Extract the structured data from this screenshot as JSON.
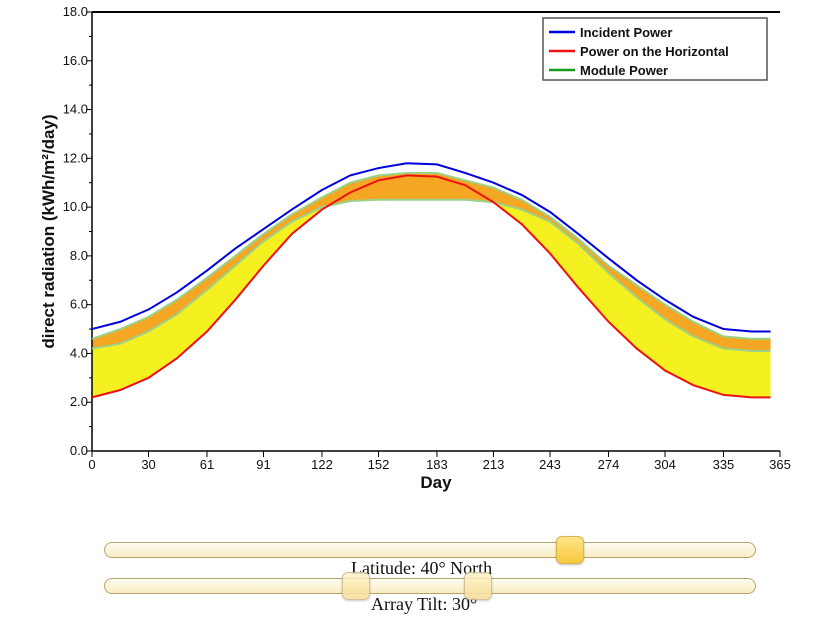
{
  "chart_data": {
    "type": "line",
    "title": "",
    "xlabel": "Day",
    "ylabel": "direct radiation (kWh/m²/day)",
    "xlim": [
      0,
      365
    ],
    "ylim": [
      0,
      18
    ],
    "x_ticks": [
      0,
      30,
      61,
      91,
      122,
      152,
      183,
      213,
      243,
      274,
      304,
      335,
      365
    ],
    "y_ticks": [
      "0.0",
      "2.0",
      "4.0",
      "6.0",
      "8.0",
      "10.0",
      "12.0",
      "14.0",
      "16.0",
      "18.0"
    ],
    "legend_position": "top-right",
    "x": [
      0,
      15,
      30,
      45,
      61,
      76,
      91,
      106,
      122,
      137,
      152,
      167,
      183,
      198,
      213,
      228,
      243,
      258,
      274,
      289,
      304,
      319,
      335,
      350,
      360
    ],
    "series": [
      {
        "name": "Incident Power",
        "color": "#0000dd",
        "values": [
          5.0,
          5.3,
          5.8,
          6.5,
          7.4,
          8.3,
          9.1,
          9.9,
          10.7,
          11.3,
          11.6,
          11.8,
          11.75,
          11.4,
          11.0,
          10.5,
          9.8,
          8.9,
          7.9,
          7.0,
          6.2,
          5.5,
          5.0,
          4.9,
          4.9
        ]
      },
      {
        "name": "Power on the Horizontal",
        "color": "#ee1111",
        "values": [
          2.2,
          2.5,
          3.0,
          3.8,
          4.9,
          6.2,
          7.6,
          8.9,
          9.9,
          10.6,
          11.1,
          11.3,
          11.25,
          10.9,
          10.2,
          9.3,
          8.1,
          6.7,
          5.3,
          4.2,
          3.3,
          2.7,
          2.3,
          2.2,
          2.2
        ]
      },
      {
        "name": "Module Power",
        "color": "#1a9a1a",
        "upper": [
          4.6,
          5.0,
          5.5,
          6.2,
          7.1,
          8.0,
          8.9,
          9.7,
          10.4,
          11.0,
          11.3,
          11.4,
          11.4,
          11.1,
          10.8,
          10.3,
          9.6,
          8.7,
          7.6,
          6.8,
          6.0,
          5.3,
          4.7,
          4.6,
          4.6
        ],
        "lower": [
          4.2,
          4.4,
          4.9,
          5.6,
          6.6,
          7.6,
          8.6,
          9.4,
          10.0,
          10.25,
          10.3,
          10.3,
          10.3,
          10.3,
          10.2,
          9.9,
          9.4,
          8.5,
          7.3,
          6.3,
          5.4,
          4.7,
          4.2,
          4.1,
          4.1
        ]
      }
    ],
    "fill_yellow_between": [
      "Module Power upper",
      "Power on the Horizontal"
    ],
    "fill_orange_between": [
      "Module Power upper",
      "Module Power lower"
    ],
    "colors": {
      "yellow_fill": "#f5f020",
      "orange_fill": "#f5a623",
      "module_light": "#9ad28a"
    }
  },
  "controls": {
    "latitude": {
      "label": "Latitude: 40° North",
      "value": 40,
      "min": -90,
      "max": 90
    },
    "tilt": {
      "label": "Array Tilt: 30°",
      "value": 30,
      "ghost_value": 0,
      "min": 0,
      "max": 90
    }
  }
}
